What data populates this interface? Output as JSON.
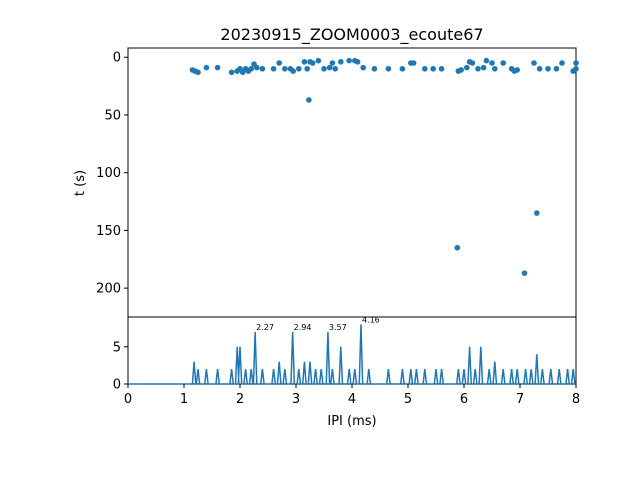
{
  "title": "20230915_ZOOM0003_ecoute67",
  "colors": {
    "series": "#1f77b4",
    "axes": "#000000",
    "background": "#ffffff"
  },
  "chart_data": [
    {
      "type": "scatter",
      "title": "20230915_ZOOM0003_ecoute67",
      "xlabel": "",
      "ylabel": "t (s)",
      "xlim": [
        0,
        8
      ],
      "ylim": [
        225,
        -8
      ],
      "y_inverted": true,
      "yticks": [
        "0",
        "50",
        "100",
        "150",
        "200"
      ],
      "grid": false,
      "points": [
        [
          1.15,
          11
        ],
        [
          1.2,
          12
        ],
        [
          1.25,
          13
        ],
        [
          1.4,
          9
        ],
        [
          1.6,
          9
        ],
        [
          1.85,
          13
        ],
        [
          1.95,
          12
        ],
        [
          2.0,
          10
        ],
        [
          2.05,
          13
        ],
        [
          2.1,
          10
        ],
        [
          2.15,
          12
        ],
        [
          2.2,
          10
        ],
        [
          2.25,
          6
        ],
        [
          2.3,
          9
        ],
        [
          2.4,
          10
        ],
        [
          2.6,
          10
        ],
        [
          2.7,
          5
        ],
        [
          2.8,
          10
        ],
        [
          2.9,
          10
        ],
        [
          2.95,
          12
        ],
        [
          3.05,
          10
        ],
        [
          3.15,
          4
        ],
        [
          3.2,
          10
        ],
        [
          3.25,
          4
        ],
        [
          3.3,
          5
        ],
        [
          3.4,
          3
        ],
        [
          3.5,
          10
        ],
        [
          3.6,
          9
        ],
        [
          3.65,
          5
        ],
        [
          3.7,
          10
        ],
        [
          3.8,
          4
        ],
        [
          3.95,
          3
        ],
        [
          4.05,
          3
        ],
        [
          4.1,
          4
        ],
        [
          4.2,
          9
        ],
        [
          4.4,
          10
        ],
        [
          4.65,
          10
        ],
        [
          4.9,
          10
        ],
        [
          5.05,
          5
        ],
        [
          5.1,
          5
        ],
        [
          5.3,
          10
        ],
        [
          5.45,
          10
        ],
        [
          5.6,
          10
        ],
        [
          5.9,
          12
        ],
        [
          5.95,
          11
        ],
        [
          6.05,
          9
        ],
        [
          6.1,
          4
        ],
        [
          6.15,
          5
        ],
        [
          6.25,
          10
        ],
        [
          6.35,
          9
        ],
        [
          6.4,
          3
        ],
        [
          6.5,
          5
        ],
        [
          6.55,
          10
        ],
        [
          6.7,
          5
        ],
        [
          6.85,
          10
        ],
        [
          6.9,
          12
        ],
        [
          6.95,
          11
        ],
        [
          7.25,
          5
        ],
        [
          7.35,
          10
        ],
        [
          7.5,
          10
        ],
        [
          7.65,
          10
        ],
        [
          7.75,
          5
        ],
        [
          7.95,
          12
        ],
        [
          8.0,
          10
        ],
        [
          8.0,
          5
        ],
        [
          3.23,
          37
        ],
        [
          5.88,
          165
        ],
        [
          7.08,
          187
        ],
        [
          7.3,
          135
        ]
      ]
    },
    {
      "type": "line",
      "xlabel": "IPI (ms)",
      "ylabel": "",
      "xlim": [
        0,
        8
      ],
      "ylim": [
        0,
        9
      ],
      "xticks": [
        "0",
        "1",
        "2",
        "3",
        "4",
        "5",
        "6",
        "7",
        "8"
      ],
      "yticks": [
        "0",
        "5"
      ],
      "grid": false,
      "peaks": [
        [
          1.18,
          3
        ],
        [
          1.25,
          2
        ],
        [
          1.4,
          2
        ],
        [
          1.6,
          2
        ],
        [
          1.85,
          2
        ],
        [
          1.95,
          5
        ],
        [
          2.0,
          5
        ],
        [
          2.1,
          2
        ],
        [
          2.2,
          2
        ],
        [
          2.27,
          7
        ],
        [
          2.4,
          2
        ],
        [
          2.6,
          2
        ],
        [
          2.7,
          3
        ],
        [
          2.8,
          2
        ],
        [
          2.94,
          7
        ],
        [
          3.05,
          2
        ],
        [
          3.15,
          3
        ],
        [
          3.25,
          3
        ],
        [
          3.35,
          2
        ],
        [
          3.45,
          2
        ],
        [
          3.57,
          7
        ],
        [
          3.65,
          2
        ],
        [
          3.8,
          5
        ],
        [
          3.95,
          2
        ],
        [
          4.05,
          2
        ],
        [
          4.16,
          8
        ],
        [
          4.3,
          2
        ],
        [
          4.65,
          2
        ],
        [
          4.9,
          2
        ],
        [
          5.05,
          2
        ],
        [
          5.15,
          2
        ],
        [
          5.3,
          2
        ],
        [
          5.5,
          2
        ],
        [
          5.6,
          2
        ],
        [
          5.9,
          2
        ],
        [
          6.0,
          2
        ],
        [
          6.1,
          5
        ],
        [
          6.2,
          2
        ],
        [
          6.3,
          5
        ],
        [
          6.45,
          2
        ],
        [
          6.55,
          3
        ],
        [
          6.7,
          2
        ],
        [
          6.85,
          2
        ],
        [
          6.95,
          2
        ],
        [
          7.1,
          2
        ],
        [
          7.2,
          2
        ],
        [
          7.3,
          4
        ],
        [
          7.4,
          2
        ],
        [
          7.55,
          2
        ],
        [
          7.7,
          2
        ],
        [
          7.85,
          2
        ],
        [
          7.95,
          2
        ]
      ],
      "annotations": [
        {
          "text": "2.27",
          "x": 2.27,
          "y": 7
        },
        {
          "text": "2.94",
          "x": 2.94,
          "y": 7
        },
        {
          "text": "3.57",
          "x": 3.57,
          "y": 7
        },
        {
          "text": "4.16",
          "x": 4.16,
          "y": 8
        }
      ]
    }
  ]
}
